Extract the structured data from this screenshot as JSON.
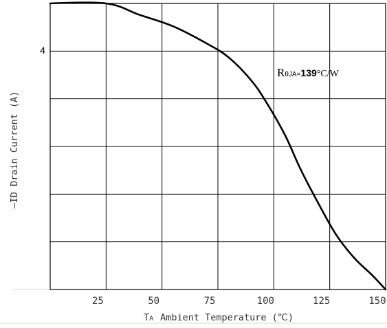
{
  "chart_data": {
    "type": "line",
    "title": "",
    "xlabel_prefix": "T",
    "xlabel_subscript": "A",
    "xlabel_text": "Ambient Temperature (℃)",
    "ylabel": "—ID Drain Current (A)",
    "x_ticks": [
      "25",
      "50",
      "75",
      "100",
      "125",
      "150"
    ],
    "x_tick_values": [
      25,
      50,
      75,
      100,
      125,
      150
    ],
    "y_ticks": [
      "4"
    ],
    "y_tick_values": [
      4
    ],
    "xlim": [
      0,
      150
    ],
    "ylim": [
      0,
      5
    ],
    "grid": true,
    "annotation": {
      "main": "R",
      "sub": "θJA=",
      "value": "139",
      "unit": "°C/W",
      "x": 100,
      "y": 4.4
    },
    "series": [
      {
        "values_x": [
          0,
          25,
          40,
          55,
          70,
          80,
          90,
          97,
          105,
          112,
          120,
          128,
          136,
          144,
          150
        ],
        "values_y": [
          5,
          5,
          4.8,
          4.6,
          4.3,
          4.05,
          3.65,
          3.25,
          2.7,
          2.1,
          1.5,
          0.95,
          0.55,
          0.25,
          0
        ]
      }
    ],
    "colors": {
      "line": "#000000",
      "grid": "#000000",
      "background": "#ffffff"
    }
  }
}
